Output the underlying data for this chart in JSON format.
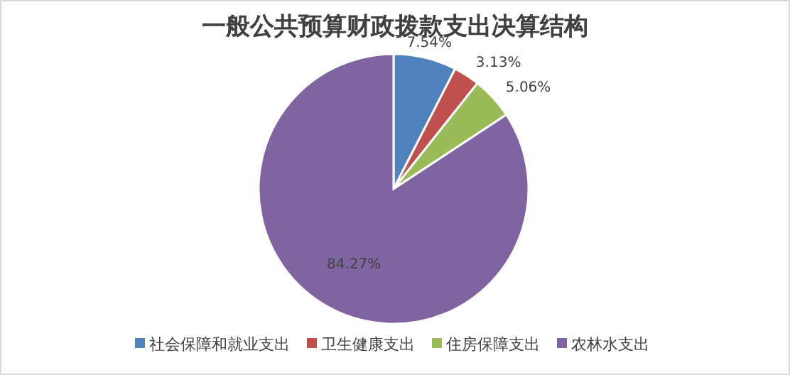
{
  "chart_data": {
    "type": "pie",
    "title": "一般公共预算财政拨款支出决算结构",
    "categories": [
      "社会保障和就业支出",
      "卫生健康支出",
      "住房保障支出",
      "农林水支出"
    ],
    "values": [
      7.54,
      3.13,
      5.06,
      84.27
    ],
    "colors": [
      "#4f81bd",
      "#c0504d",
      "#9bbb59",
      "#8064a2"
    ],
    "value_labels": [
      "7.54%",
      "3.13%",
      "5.06%",
      "84.27%"
    ],
    "legend": "bottom"
  }
}
